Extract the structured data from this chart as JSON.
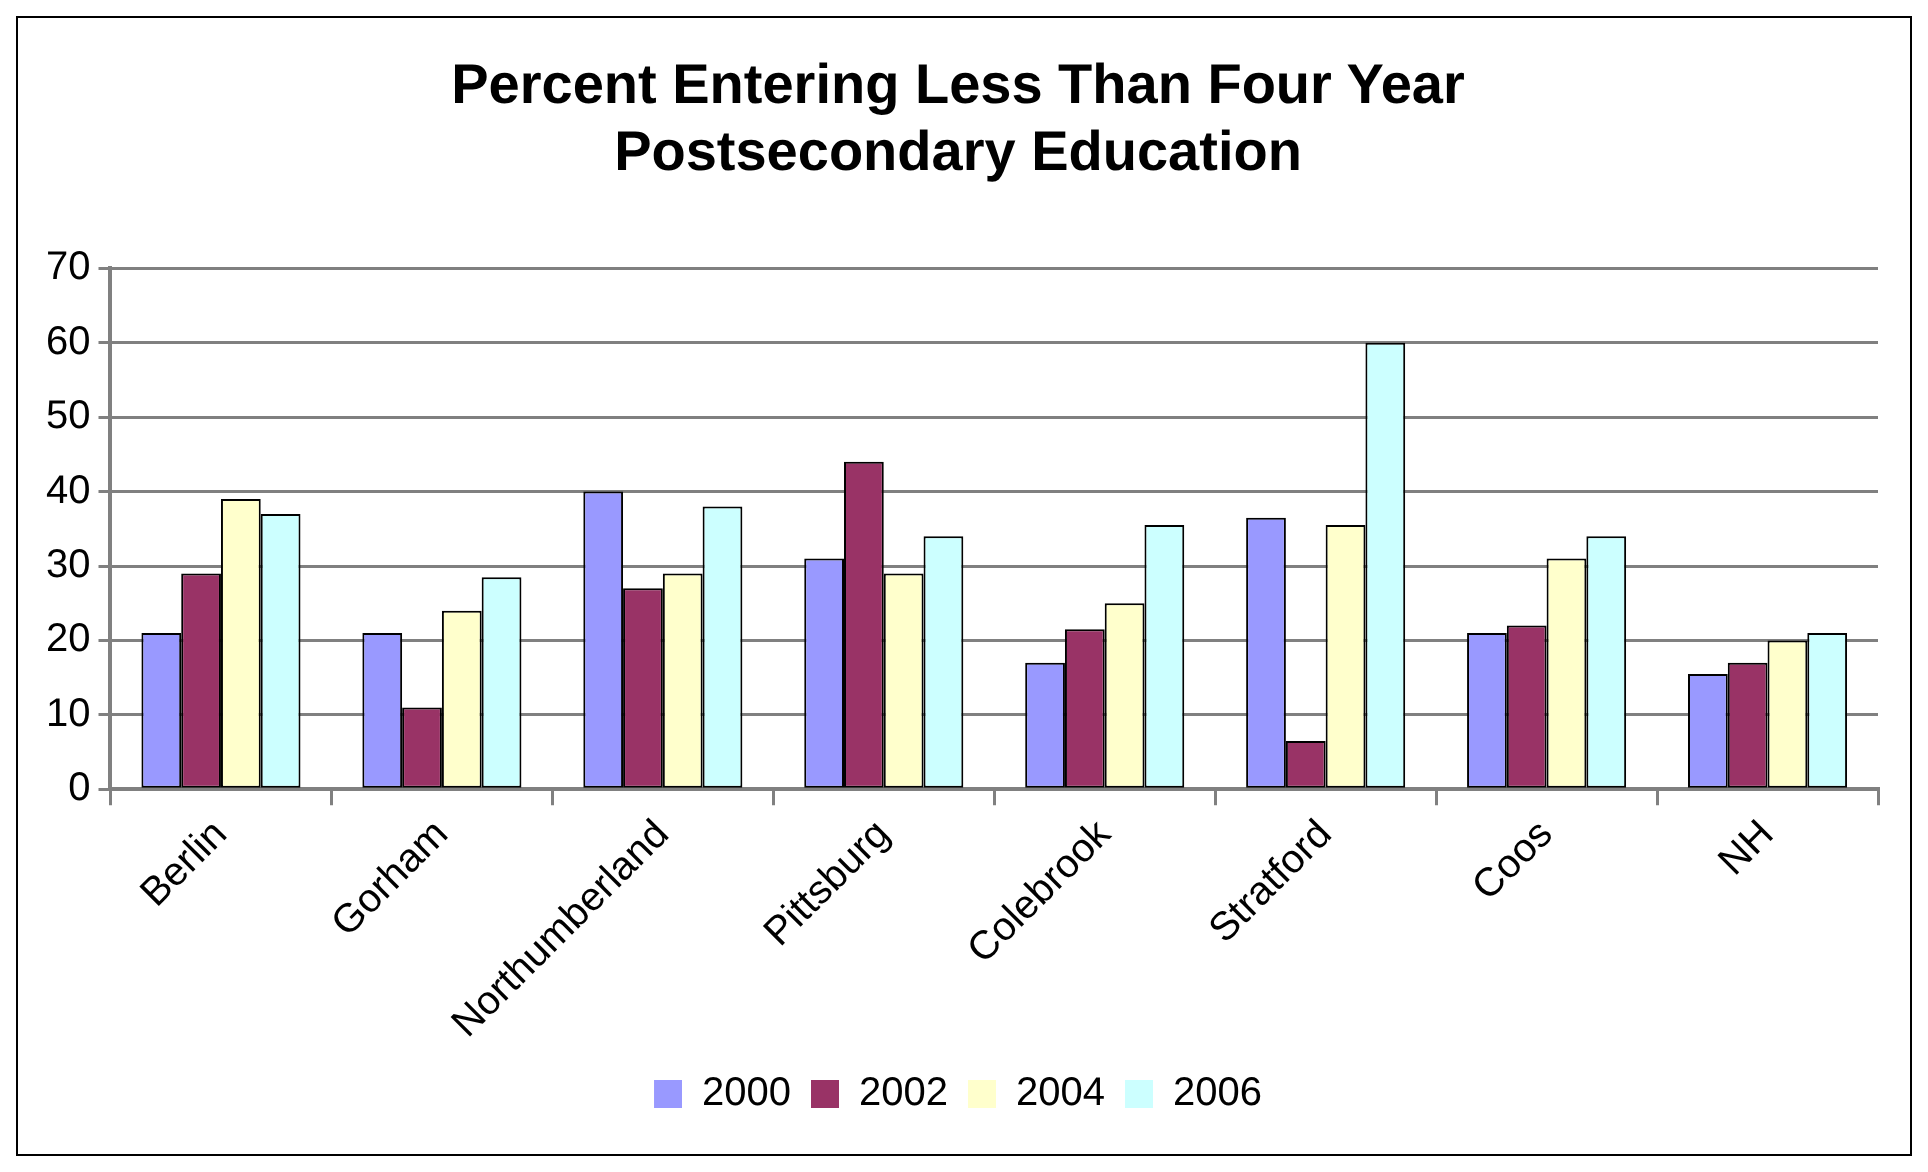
{
  "chart_data": {
    "type": "bar",
    "title": "Percent Entering Less Than Four Year Postsecondary Education",
    "categories": [
      "Berlin",
      "Gorham",
      "Northumberland",
      "Pittsburg",
      "Colebrook",
      "Stratford",
      "Coos",
      "NH"
    ],
    "series": [
      {
        "name": "2000",
        "color": "#9999ff",
        "values": [
          21,
          21,
          40,
          31,
          17,
          36.5,
          21,
          15.5
        ]
      },
      {
        "name": "2002",
        "color": "#993366",
        "values": [
          29,
          11,
          27,
          44,
          21.5,
          6.5,
          22,
          17
        ]
      },
      {
        "name": "2004",
        "color": "#ffffcc",
        "values": [
          39,
          24,
          29,
          29,
          25,
          35.5,
          31,
          20
        ]
      },
      {
        "name": "2006",
        "color": "#ccffff",
        "values": [
          37,
          28.5,
          38,
          34,
          35.5,
          60,
          34,
          21
        ]
      }
    ],
    "ylim": [
      0,
      70
    ],
    "yticks": [
      0,
      10,
      20,
      30,
      40,
      50,
      60,
      70
    ],
    "grid": "y",
    "legend": "bottom"
  }
}
